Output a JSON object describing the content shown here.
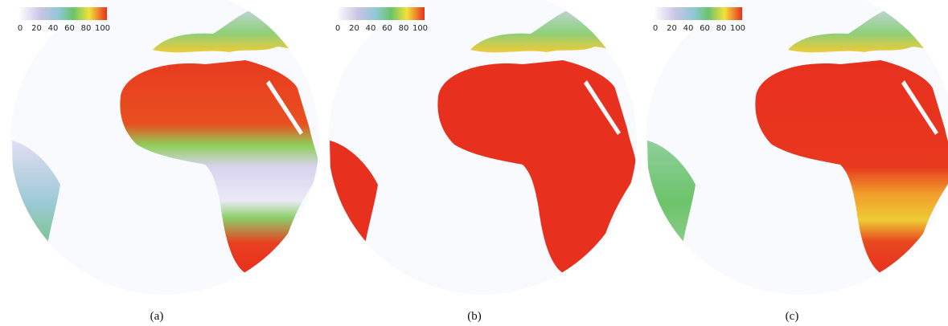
{
  "panels": [
    {
      "caption": "(a)",
      "colorbar_ticks": [
        0,
        20,
        40,
        60,
        80,
        100
      ]
    },
    {
      "caption": "(b)",
      "colorbar_ticks": [
        0,
        20,
        40,
        60,
        80,
        100
      ]
    },
    {
      "caption": "(c)",
      "colorbar_ticks": [
        0,
        20,
        40,
        60,
        80,
        100
      ]
    }
  ]
}
